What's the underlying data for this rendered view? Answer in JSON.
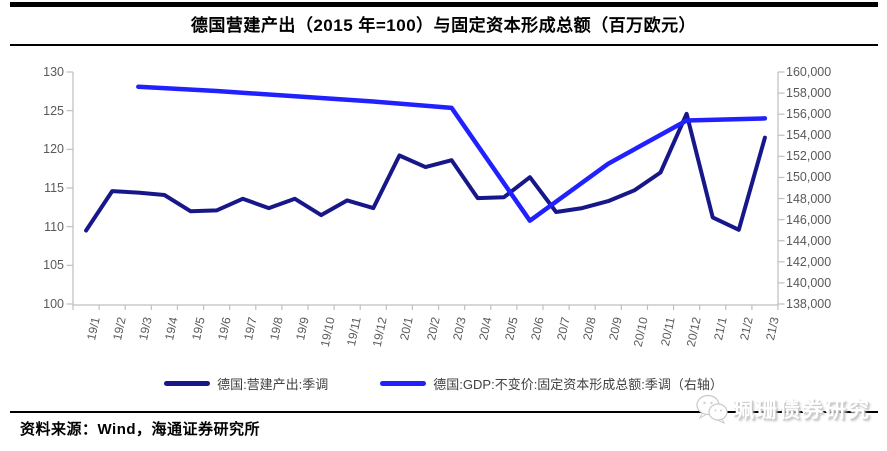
{
  "header": {
    "title": "德国营建产出（2015 年=100）与固定资本形成总额（百万欧元）"
  },
  "chart_data": {
    "type": "line",
    "title": "德国营建产出（2015 年=100）与固定资本形成总额（百万欧元）",
    "categories": [
      "19/1",
      "19/2",
      "19/3",
      "19/4",
      "19/5",
      "19/6",
      "19/7",
      "19/8",
      "19/9",
      "19/10",
      "19/11",
      "19/12",
      "20/1",
      "20/2",
      "20/3",
      "20/4",
      "20/5",
      "20/6",
      "20/7",
      "20/8",
      "20/9",
      "20/10",
      "20/11",
      "20/12",
      "21/1",
      "21/2",
      "21/3"
    ],
    "series": [
      {
        "name": "德国:营建产出:季调",
        "axis": "left",
        "color": "#17178A",
        "line_width": 4,
        "values": [
          109.5,
          114.6,
          114.4,
          114.1,
          112.0,
          112.1,
          113.6,
          112.4,
          113.6,
          111.5,
          113.4,
          112.4,
          119.2,
          117.7,
          118.6,
          113.7,
          113.8,
          116.4,
          111.9,
          112.4,
          113.3,
          114.7,
          117.0,
          124.6,
          111.2,
          109.6,
          121.5
        ]
      },
      {
        "name": "德国:GDP:不变价:固定资本形成总额:季调（右轴）",
        "axis": "right",
        "color": "#2121FF",
        "line_width": 4.5,
        "x": [
          "19/3",
          "19/6",
          "19/9",
          "19/12",
          "20/3",
          "20/6",
          "20/9",
          "20/12",
          "21/3"
        ],
        "values": [
          158600,
          158200,
          157700,
          157200,
          156600,
          145900,
          151300,
          155400,
          155600
        ]
      }
    ],
    "left_axis": {
      "min": 100,
      "max": 130,
      "step": 5
    },
    "right_axis": {
      "min": 138000,
      "max": 160000,
      "step": 2000
    },
    "grid": false,
    "legend_position": "bottom"
  },
  "footer": {
    "source_label": "资料来源：Wind，海通证券研究所",
    "watermark_text": "珮珊债券研究",
    "watermark_icon": "wechat-icon"
  },
  "colors": {
    "navy": "#17178A",
    "bright_blue": "#2121FF",
    "axis_line": "#BFBFBF",
    "tick_label": "#595959",
    "legend_label": "#404040",
    "rule": "#000000"
  }
}
